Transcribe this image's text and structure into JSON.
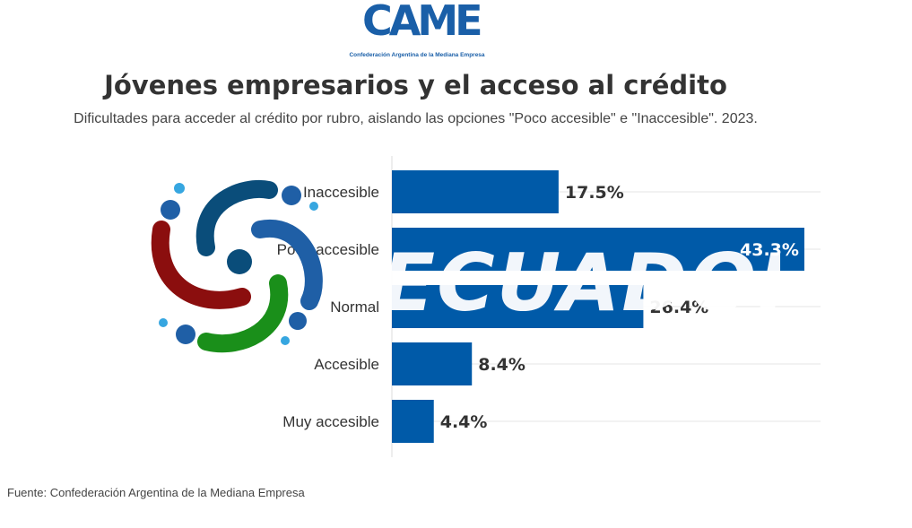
{
  "header": {
    "logo_text": "CAME",
    "logo_caption": "Confederación Argentina de la Mediana Empresa",
    "title": "Jóvenes empresarios y el acceso al crédito",
    "subtitle": "Dificultades para acceder al crédito por rubro, aislando las opciones \"Poco accesible\" e \"Inaccesible\". 2023."
  },
  "watermark": {
    "text": "ECUADORA",
    "colors": [
      "#0a4d7a",
      "#8b0e0e",
      "#1a8f1a",
      "#1f5fa6",
      "#36a6e0"
    ]
  },
  "colors": {
    "bar": "#005aa8",
    "grid": "#e6e6e6",
    "label": "#333333",
    "label_inside": "#ffffff"
  },
  "chart_data": {
    "type": "bar",
    "orientation": "horizontal",
    "categories": [
      "Inaccesible",
      "Poco accesible",
      "Normal",
      "Accesible",
      "Muy accesible"
    ],
    "values": [
      17.5,
      43.3,
      26.4,
      8.4,
      4.4
    ],
    "value_labels": [
      "17.5%",
      "43.3%",
      "26.4%",
      "8.4%",
      "4.4%"
    ],
    "xlim": [
      0,
      45
    ],
    "grid": true
  },
  "footer": {
    "source": "Fuente: Confederación Argentina de la Mediana Empresa"
  }
}
